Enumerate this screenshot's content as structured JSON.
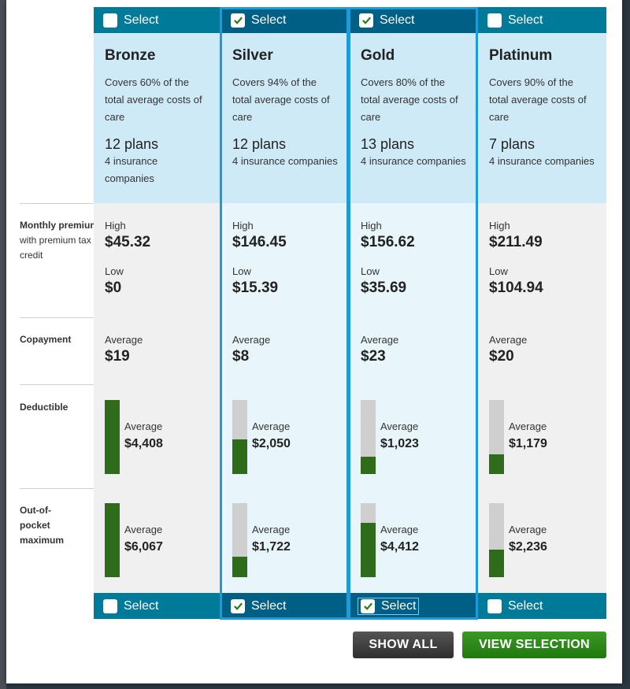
{
  "colors": {
    "bar_teal": "#007a99",
    "bar_selected": "#005f85",
    "header_bg": "#cfeaf7",
    "selected_outline": "#1e9ad6",
    "bar_fill": "#2e6b1a",
    "bar_track": "#cfcfcf",
    "show_all_bg": "#3a3a3a",
    "view_selection_bg": "#2a8a18"
  },
  "row_labels": {
    "monthly_premium_bold": "Monthly premium",
    "monthly_premium_rest": "with premium tax credit",
    "copayment": "Copayment",
    "deductible": "Deductible",
    "out_of_pocket": "Out-of-pocket maximum"
  },
  "labels": {
    "high": "High",
    "low": "Low",
    "average": "Average"
  },
  "tiers": [
    {
      "select_label": "Select",
      "checked": false,
      "selected": false,
      "name": "Bronze",
      "description": "Covers 60% of the total average costs of care",
      "plans": "12 plans",
      "companies": "4 insurance companies",
      "premium_high": "$45.32",
      "premium_low": "$0",
      "copay": "$19",
      "deductible": "$4,408",
      "deductible_fraction": 1.0,
      "oop": "$6,067",
      "oop_fraction": 1.0
    },
    {
      "select_label": "Select",
      "checked": true,
      "selected": true,
      "name": "Silver",
      "description": "Covers 94% of the total average costs of care",
      "plans": "12 plans",
      "companies": "4 insurance companies",
      "premium_high": "$146.45",
      "premium_low": "$15.39",
      "copay": "$8",
      "deductible": "$2,050",
      "deductible_fraction": 0.47,
      "oop": "$1,722",
      "oop_fraction": 0.28
    },
    {
      "select_label": "Select",
      "checked": true,
      "selected": true,
      "name": "Gold",
      "description": "Covers 80% of the total average costs of care",
      "plans": "13 plans",
      "companies": "4 insurance companies",
      "premium_high": "$156.62",
      "premium_low": "$35.69",
      "copay": "$23",
      "deductible": "$1,023",
      "deductible_fraction": 0.23,
      "oop": "$4,412",
      "oop_fraction": 0.73
    },
    {
      "select_label": "Select",
      "checked": false,
      "selected": false,
      "name": "Platinum",
      "description": "Covers 90% of the total average costs of care",
      "plans": "7 plans",
      "companies": "4 insurance companies",
      "premium_high": "$211.49",
      "premium_low": "$104.94",
      "copay": "$20",
      "deductible": "$1,179",
      "deductible_fraction": 0.27,
      "oop": "$2,236",
      "oop_fraction": 0.37
    }
  ],
  "buttons": {
    "show_all": "SHOW ALL",
    "view_selection": "VIEW SELECTION"
  }
}
